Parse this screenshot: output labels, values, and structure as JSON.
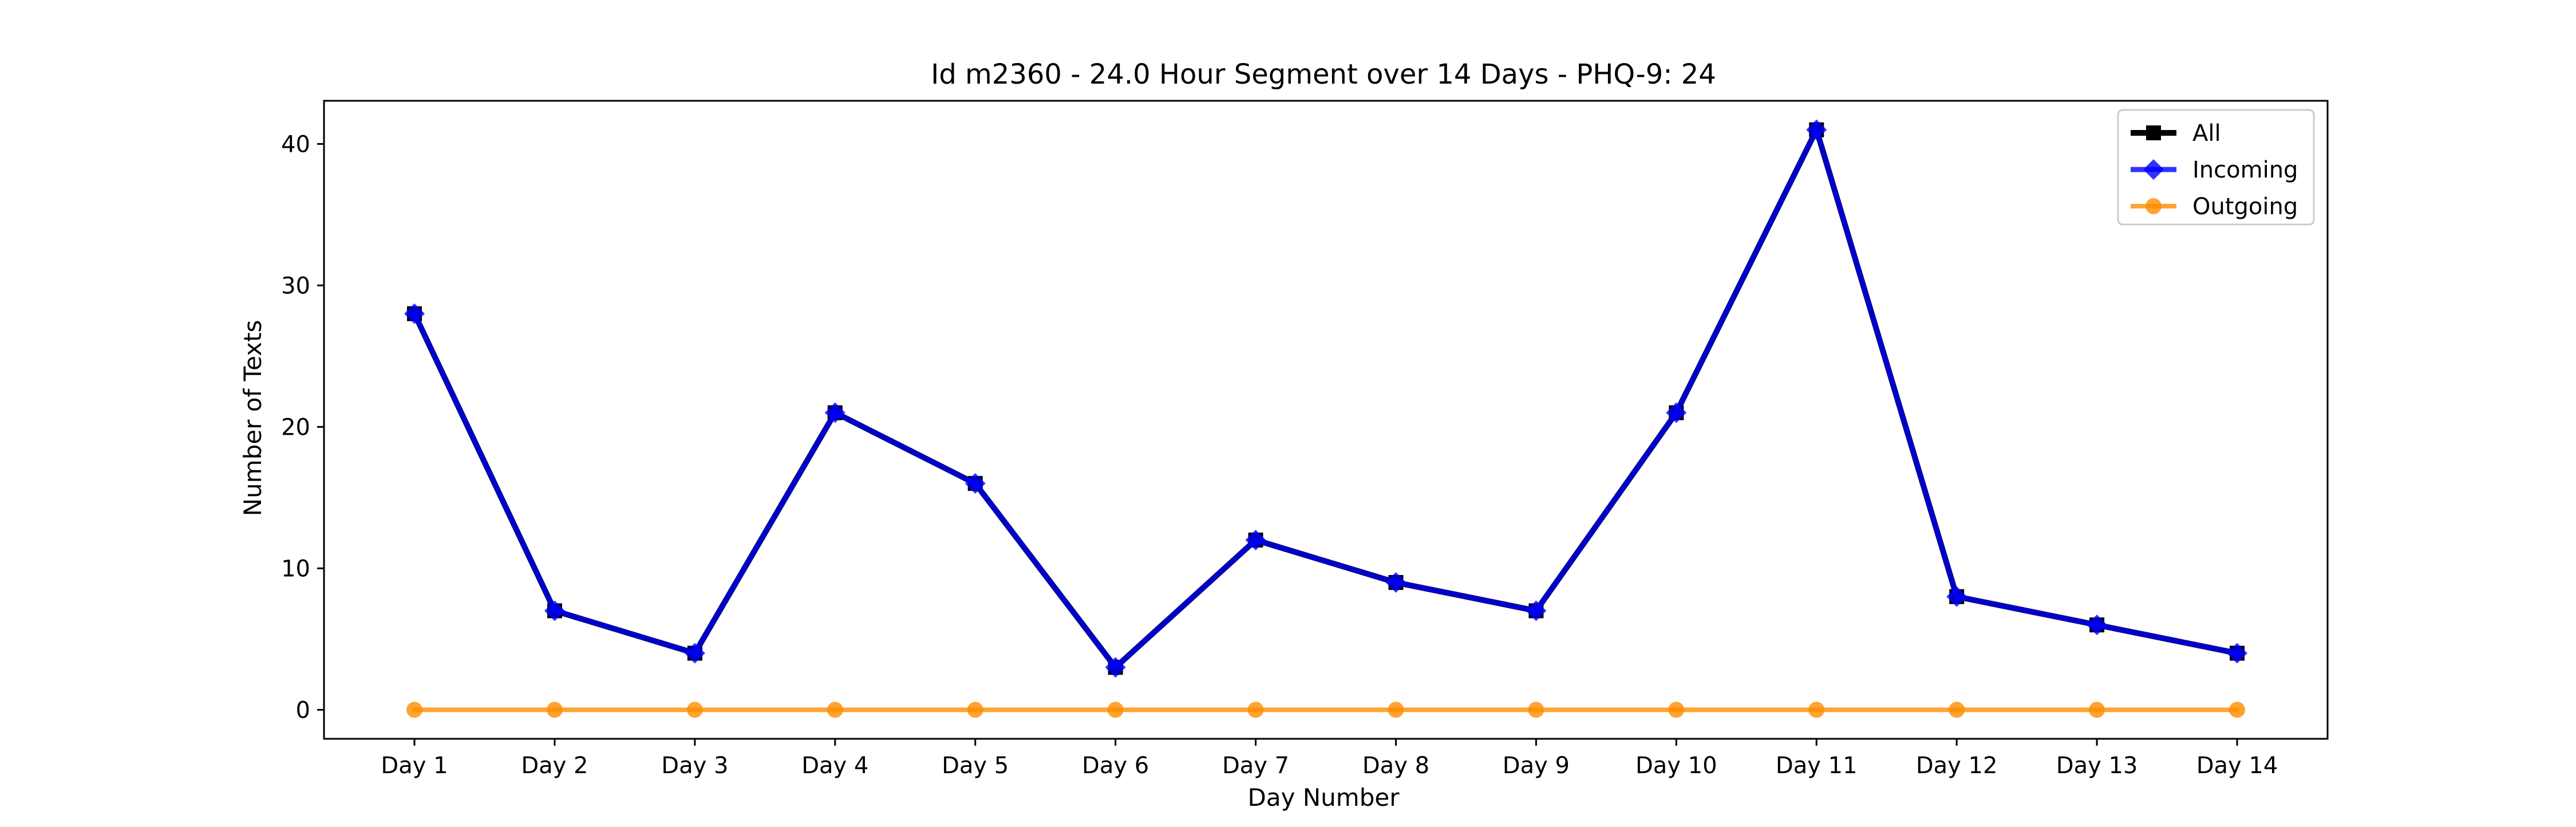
{
  "chart_data": {
    "type": "line",
    "title": "Id m2360 - 24.0 Hour Segment over 14 Days - PHQ-9: 24",
    "xlabel": "Day Number",
    "ylabel": "Number of Texts",
    "categories": [
      "Day 1",
      "Day 2",
      "Day 3",
      "Day 4",
      "Day 5",
      "Day 6",
      "Day 7",
      "Day 8",
      "Day 9",
      "Day 10",
      "Day 11",
      "Day 12",
      "Day 13",
      "Day 14"
    ],
    "yticks": [
      0,
      10,
      20,
      30,
      40
    ],
    "ylim": [
      -2.05,
      43.05
    ],
    "grid": false,
    "legend_position": "top-right",
    "series": [
      {
        "name": "All",
        "values": [
          28,
          7,
          4,
          21,
          16,
          3,
          12,
          9,
          7,
          21,
          41,
          8,
          6,
          4
        ],
        "color": "#000000",
        "marker": "square"
      },
      {
        "name": "Incoming",
        "values": [
          28,
          7,
          4,
          21,
          16,
          3,
          12,
          9,
          7,
          21,
          41,
          8,
          6,
          4
        ],
        "color": "#0000ff",
        "marker": "diamond"
      },
      {
        "name": "Outgoing",
        "values": [
          0,
          0,
          0,
          0,
          0,
          0,
          0,
          0,
          0,
          0,
          0,
          0,
          0,
          0
        ],
        "color": "#ff8c00",
        "marker": "circle"
      }
    ]
  }
}
